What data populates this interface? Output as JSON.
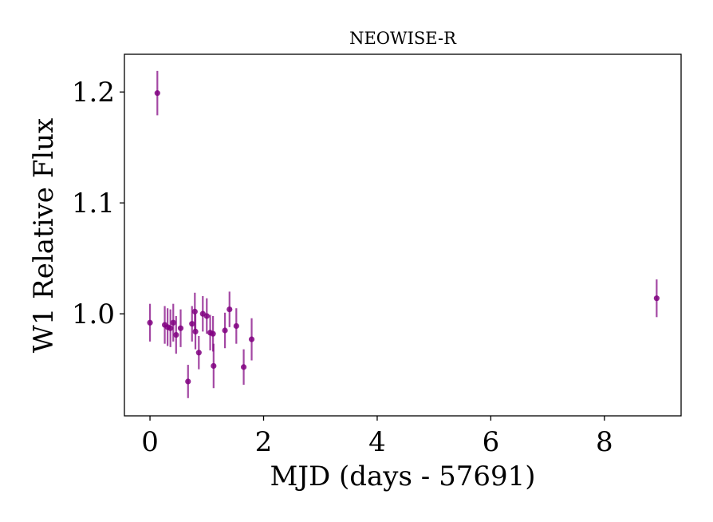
{
  "chart_data": {
    "type": "scatter",
    "title": "NEOWISE-R",
    "xlabel": "MJD (days - 57691)",
    "ylabel": "W1 Relative Flux",
    "xlim": [
      -0.45,
      9.35
    ],
    "ylim": [
      0.908,
      1.234
    ],
    "xticks": [
      0,
      2,
      4,
      6,
      8
    ],
    "xtick_labels": [
      "0",
      "2",
      "4",
      "6",
      "8"
    ],
    "yticks": [
      1.0,
      1.1,
      1.2
    ],
    "ytick_labels": [
      "1.0",
      "1.1",
      "1.2"
    ],
    "grid": false,
    "legend": false,
    "color": "#800080",
    "points": [
      {
        "x": 0.0,
        "y": 0.992,
        "err": 0.017
      },
      {
        "x": 0.13,
        "y": 1.199,
        "err": 0.02
      },
      {
        "x": 0.26,
        "y": 0.99,
        "err": 0.017
      },
      {
        "x": 0.31,
        "y": 0.988,
        "err": 0.017
      },
      {
        "x": 0.36,
        "y": 0.987,
        "err": 0.017
      },
      {
        "x": 0.41,
        "y": 0.992,
        "err": 0.017
      },
      {
        "x": 0.46,
        "y": 0.981,
        "err": 0.017
      },
      {
        "x": 0.54,
        "y": 0.987,
        "err": 0.017
      },
      {
        "x": 0.67,
        "y": 0.939,
        "err": 0.015
      },
      {
        "x": 0.74,
        "y": 0.991,
        "err": 0.016
      },
      {
        "x": 0.79,
        "y": 1.002,
        "err": 0.017
      },
      {
        "x": 0.8,
        "y": 0.984,
        "err": 0.016
      },
      {
        "x": 0.86,
        "y": 0.965,
        "err": 0.015
      },
      {
        "x": 0.93,
        "y": 1.0,
        "err": 0.016
      },
      {
        "x": 1.0,
        "y": 0.998,
        "err": 0.016
      },
      {
        "x": 1.06,
        "y": 0.983,
        "err": 0.016
      },
      {
        "x": 1.11,
        "y": 0.982,
        "err": 0.016
      },
      {
        "x": 1.12,
        "y": 0.953,
        "err": 0.02
      },
      {
        "x": 1.32,
        "y": 0.985,
        "err": 0.016
      },
      {
        "x": 1.4,
        "y": 1.004,
        "err": 0.016
      },
      {
        "x": 1.52,
        "y": 0.989,
        "err": 0.016
      },
      {
        "x": 1.65,
        "y": 0.952,
        "err": 0.016
      },
      {
        "x": 1.79,
        "y": 0.977,
        "err": 0.019
      },
      {
        "x": 8.92,
        "y": 1.014,
        "err": 0.017
      }
    ]
  }
}
